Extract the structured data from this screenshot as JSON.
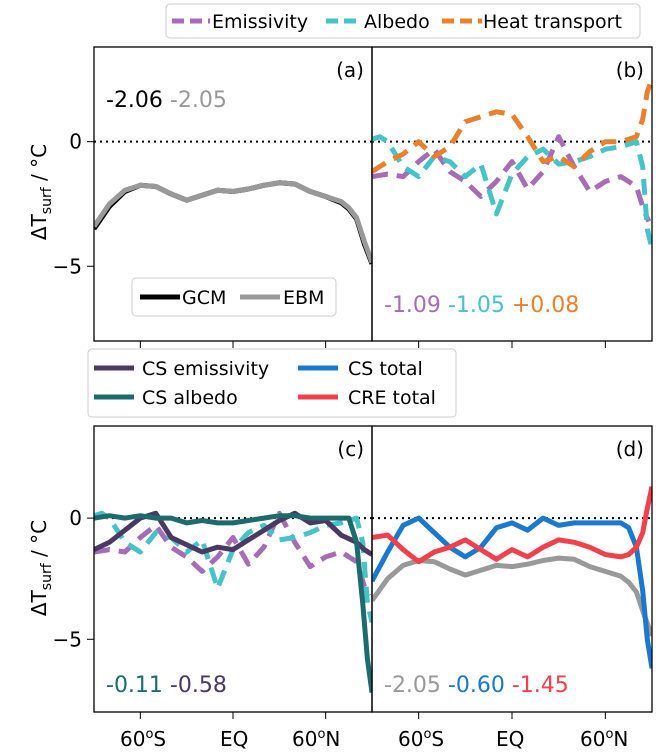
{
  "ylabel_base": "ΔT",
  "ylabel_sub": "surf",
  "ylabel_unit": " / °C",
  "ytick_labels": [
    "0",
    "−5"
  ],
  "xtick_labels": [
    "60",
    "S",
    "EQ",
    "60",
    "N"
  ],
  "chart_data": [
    {
      "panel": "(a)",
      "type": "line",
      "ylim": [
        -8,
        3.8
      ],
      "xlim": [
        -90,
        90
      ],
      "yticks": [
        0,
        -5
      ],
      "numbers": [
        {
          "text": "-2.06",
          "color": "#000000"
        },
        {
          "text": "-2.05",
          "color": "#999999"
        }
      ],
      "legend": [
        "GCM",
        "EBM"
      ],
      "series": [
        {
          "name": "GCM",
          "color": "#000000",
          "dash": false,
          "x": [
            -90,
            -80,
            -70,
            -60,
            -50,
            -40,
            -30,
            -20,
            -10,
            0,
            10,
            20,
            30,
            40,
            50,
            60,
            70,
            75,
            80,
            85,
            90
          ],
          "y": [
            -3.5,
            -2.6,
            -2.0,
            -1.75,
            -1.8,
            -2.1,
            -2.35,
            -2.15,
            -1.95,
            -2.0,
            -1.9,
            -1.75,
            -1.65,
            -1.7,
            -2.0,
            -2.2,
            -2.45,
            -2.7,
            -3.1,
            -4.1,
            -4.9
          ]
        },
        {
          "name": "EBM",
          "color": "#999999",
          "dash": false,
          "x": [
            -90,
            -80,
            -70,
            -60,
            -50,
            -40,
            -30,
            -20,
            -10,
            0,
            10,
            20,
            30,
            40,
            50,
            60,
            70,
            75,
            80,
            85,
            90
          ],
          "y": [
            -3.4,
            -2.5,
            -1.95,
            -1.75,
            -1.8,
            -2.1,
            -2.35,
            -2.15,
            -1.95,
            -2.0,
            -1.9,
            -1.75,
            -1.65,
            -1.7,
            -2.0,
            -2.2,
            -2.4,
            -2.65,
            -3.05,
            -4.0,
            -4.85
          ]
        }
      ]
    },
    {
      "panel": "(b)",
      "type": "line",
      "ylim": [
        -8,
        3.8
      ],
      "xlim": [
        -90,
        90
      ],
      "yticks": [
        0,
        -5
      ],
      "numbers": [
        {
          "text": "-1.09",
          "color": "#a66cb5"
        },
        {
          "text": "-1.05",
          "color": "#45c3c7"
        },
        {
          "text": "+0.08",
          "color": "#e8802e"
        }
      ],
      "legend": [
        "Emissivity",
        "Albedo",
        "Heat transport"
      ],
      "series": [
        {
          "name": "Emissivity",
          "color": "#a66cb5",
          "dash": true,
          "x": [
            -90,
            -80,
            -70,
            -60,
            -50,
            -40,
            -30,
            -20,
            -10,
            0,
            10,
            20,
            30,
            40,
            50,
            60,
            70,
            80,
            85,
            88
          ],
          "y": [
            -1.4,
            -1.3,
            -1.4,
            -0.8,
            -0.3,
            -1.2,
            -1.6,
            -2.2,
            -1.6,
            -0.8,
            -1.9,
            -1.2,
            0.2,
            -1.0,
            -2.0,
            -1.6,
            -1.4,
            -1.8,
            -2.8,
            -3.2
          ]
        },
        {
          "name": "Albedo",
          "color": "#45c3c7",
          "dash": true,
          "x": [
            -90,
            -85,
            -80,
            -70,
            -60,
            -50,
            -40,
            -30,
            -20,
            -10,
            0,
            10,
            20,
            30,
            40,
            50,
            60,
            70,
            80,
            84,
            87,
            90
          ],
          "y": [
            0.1,
            0.2,
            0.0,
            -1.0,
            -1.4,
            -0.6,
            -0.8,
            -1.4,
            -0.9,
            -2.9,
            -1.3,
            -0.6,
            -0.3,
            -0.9,
            -0.8,
            -0.6,
            -0.3,
            -0.2,
            0.0,
            -1.0,
            -3.5,
            -4.3
          ]
        },
        {
          "name": "Heat transport",
          "color": "#e8802e",
          "dash": true,
          "x": [
            -90,
            -80,
            -70,
            -60,
            -50,
            -40,
            -30,
            -20,
            -10,
            0,
            10,
            20,
            30,
            40,
            50,
            60,
            70,
            80,
            84,
            87,
            90
          ],
          "y": [
            -1.2,
            -0.8,
            -0.5,
            0.0,
            -0.6,
            -0.2,
            0.8,
            1.0,
            1.2,
            1.1,
            0.2,
            -0.8,
            -0.6,
            -1.0,
            -0.4,
            0.0,
            0.0,
            0.2,
            0.9,
            2.0,
            2.5
          ]
        }
      ]
    },
    {
      "panel": "(c)",
      "type": "line",
      "ylim": [
        -8,
        3.8
      ],
      "xlim": [
        -90,
        90
      ],
      "yticks": [
        0,
        -5
      ],
      "numbers": [
        {
          "text": "-0.11",
          "color": "#1d6b6d"
        },
        {
          "text": "-0.58",
          "color": "#4a3a63"
        }
      ],
      "legend": [
        "CS emissivity",
        "CS albedo",
        "CS total",
        "CRE total"
      ],
      "series": [
        {
          "name": "Emissivity",
          "color": "#a66cb5",
          "dash": true,
          "x": [
            -90,
            -80,
            -70,
            -60,
            -50,
            -40,
            -30,
            -20,
            -10,
            0,
            10,
            20,
            30,
            40,
            50,
            60,
            70,
            80,
            85,
            88
          ],
          "y": [
            -1.4,
            -1.3,
            -1.4,
            -0.8,
            -0.3,
            -1.2,
            -1.6,
            -2.2,
            -1.6,
            -0.8,
            -1.9,
            -1.2,
            0.2,
            -1.0,
            -2.0,
            -1.6,
            -1.4,
            -1.8,
            -2.8,
            -3.2
          ]
        },
        {
          "name": "Albedo",
          "color": "#45c3c7",
          "dash": true,
          "x": [
            -90,
            -85,
            -80,
            -70,
            -60,
            -50,
            -40,
            -30,
            -20,
            -10,
            0,
            10,
            20,
            30,
            40,
            50,
            60,
            70,
            80,
            84,
            87,
            90
          ],
          "y": [
            0.1,
            0.2,
            0.0,
            -1.0,
            -1.4,
            -0.6,
            -0.8,
            -1.4,
            -0.9,
            -2.9,
            -1.3,
            -0.6,
            -0.3,
            -0.9,
            -0.8,
            -0.6,
            -0.3,
            -0.2,
            0.0,
            -1.0,
            -3.5,
            -4.3
          ]
        },
        {
          "name": "CS emissivity",
          "color": "#4a3a63",
          "dash": false,
          "x": [
            -90,
            -80,
            -70,
            -60,
            -50,
            -40,
            -30,
            -20,
            -10,
            0,
            10,
            20,
            30,
            40,
            50,
            60,
            70,
            80,
            85,
            90
          ],
          "y": [
            -1.3,
            -1.0,
            -0.5,
            0.0,
            0.2,
            -0.8,
            -1.1,
            -1.4,
            -1.2,
            -1.3,
            -0.9,
            -0.5,
            -0.1,
            0.2,
            -0.2,
            -0.1,
            -0.7,
            -1.0,
            -1.3,
            -1.5
          ]
        },
        {
          "name": "CS albedo",
          "color": "#1d6b6d",
          "dash": false,
          "x": [
            -90,
            -80,
            -70,
            -60,
            -50,
            -40,
            -30,
            -20,
            -10,
            0,
            10,
            20,
            30,
            40,
            50,
            60,
            70,
            75,
            80,
            84,
            87,
            90
          ],
          "y": [
            0.0,
            0.1,
            0.0,
            0.1,
            0.0,
            0.0,
            -0.2,
            -0.1,
            -0.2,
            -0.2,
            -0.1,
            0.0,
            0.1,
            0.1,
            0.0,
            0.0,
            0.0,
            0.0,
            -1.0,
            -3.5,
            -5.8,
            -7.2
          ]
        }
      ]
    },
    {
      "panel": "(d)",
      "type": "line",
      "ylim": [
        -8,
        3.8
      ],
      "xlim": [
        -90,
        90
      ],
      "yticks": [
        0,
        -5
      ],
      "numbers": [
        {
          "text": "-2.05",
          "color": "#999999"
        },
        {
          "text": "-0.60",
          "color": "#1a78cf"
        },
        {
          "text": "-1.45",
          "color": "#f0404c"
        }
      ],
      "series": [
        {
          "name": "EBM",
          "color": "#999999",
          "dash": false,
          "x": [
            -90,
            -80,
            -70,
            -60,
            -50,
            -40,
            -30,
            -20,
            -10,
            0,
            10,
            20,
            30,
            40,
            50,
            60,
            70,
            75,
            80,
            85,
            90
          ],
          "y": [
            -3.4,
            -2.5,
            -1.95,
            -1.75,
            -1.8,
            -2.1,
            -2.35,
            -2.15,
            -1.95,
            -2.0,
            -1.9,
            -1.75,
            -1.65,
            -1.7,
            -2.0,
            -2.2,
            -2.4,
            -2.65,
            -3.05,
            -4.0,
            -4.85
          ]
        },
        {
          "name": "CS total",
          "color": "#1a78cf",
          "dash": false,
          "x": [
            -90,
            -80,
            -70,
            -60,
            -50,
            -40,
            -30,
            -20,
            -10,
            0,
            10,
            20,
            30,
            40,
            50,
            60,
            70,
            75,
            80,
            84,
            87,
            90
          ],
          "y": [
            -2.6,
            -1.4,
            -0.3,
            0.0,
            -0.6,
            -1.2,
            -1.6,
            -1.2,
            -0.4,
            -0.2,
            -0.5,
            0.0,
            -0.3,
            -0.2,
            -0.2,
            -0.2,
            -0.2,
            -0.4,
            -1.2,
            -3.0,
            -5.0,
            -6.2
          ]
        },
        {
          "name": "CRE total",
          "color": "#f0404c",
          "dash": false,
          "x": [
            -90,
            -80,
            -70,
            -60,
            -50,
            -40,
            -30,
            -20,
            -10,
            0,
            10,
            20,
            30,
            40,
            50,
            60,
            70,
            75,
            80,
            84,
            87,
            90
          ],
          "y": [
            -0.8,
            -0.7,
            -1.3,
            -1.8,
            -1.4,
            -1.2,
            -0.9,
            -1.3,
            -1.7,
            -1.3,
            -1.6,
            -1.2,
            -0.9,
            -1.0,
            -1.2,
            -1.5,
            -1.6,
            -1.5,
            -1.2,
            -0.6,
            0.4,
            1.3
          ]
        }
      ]
    }
  ]
}
